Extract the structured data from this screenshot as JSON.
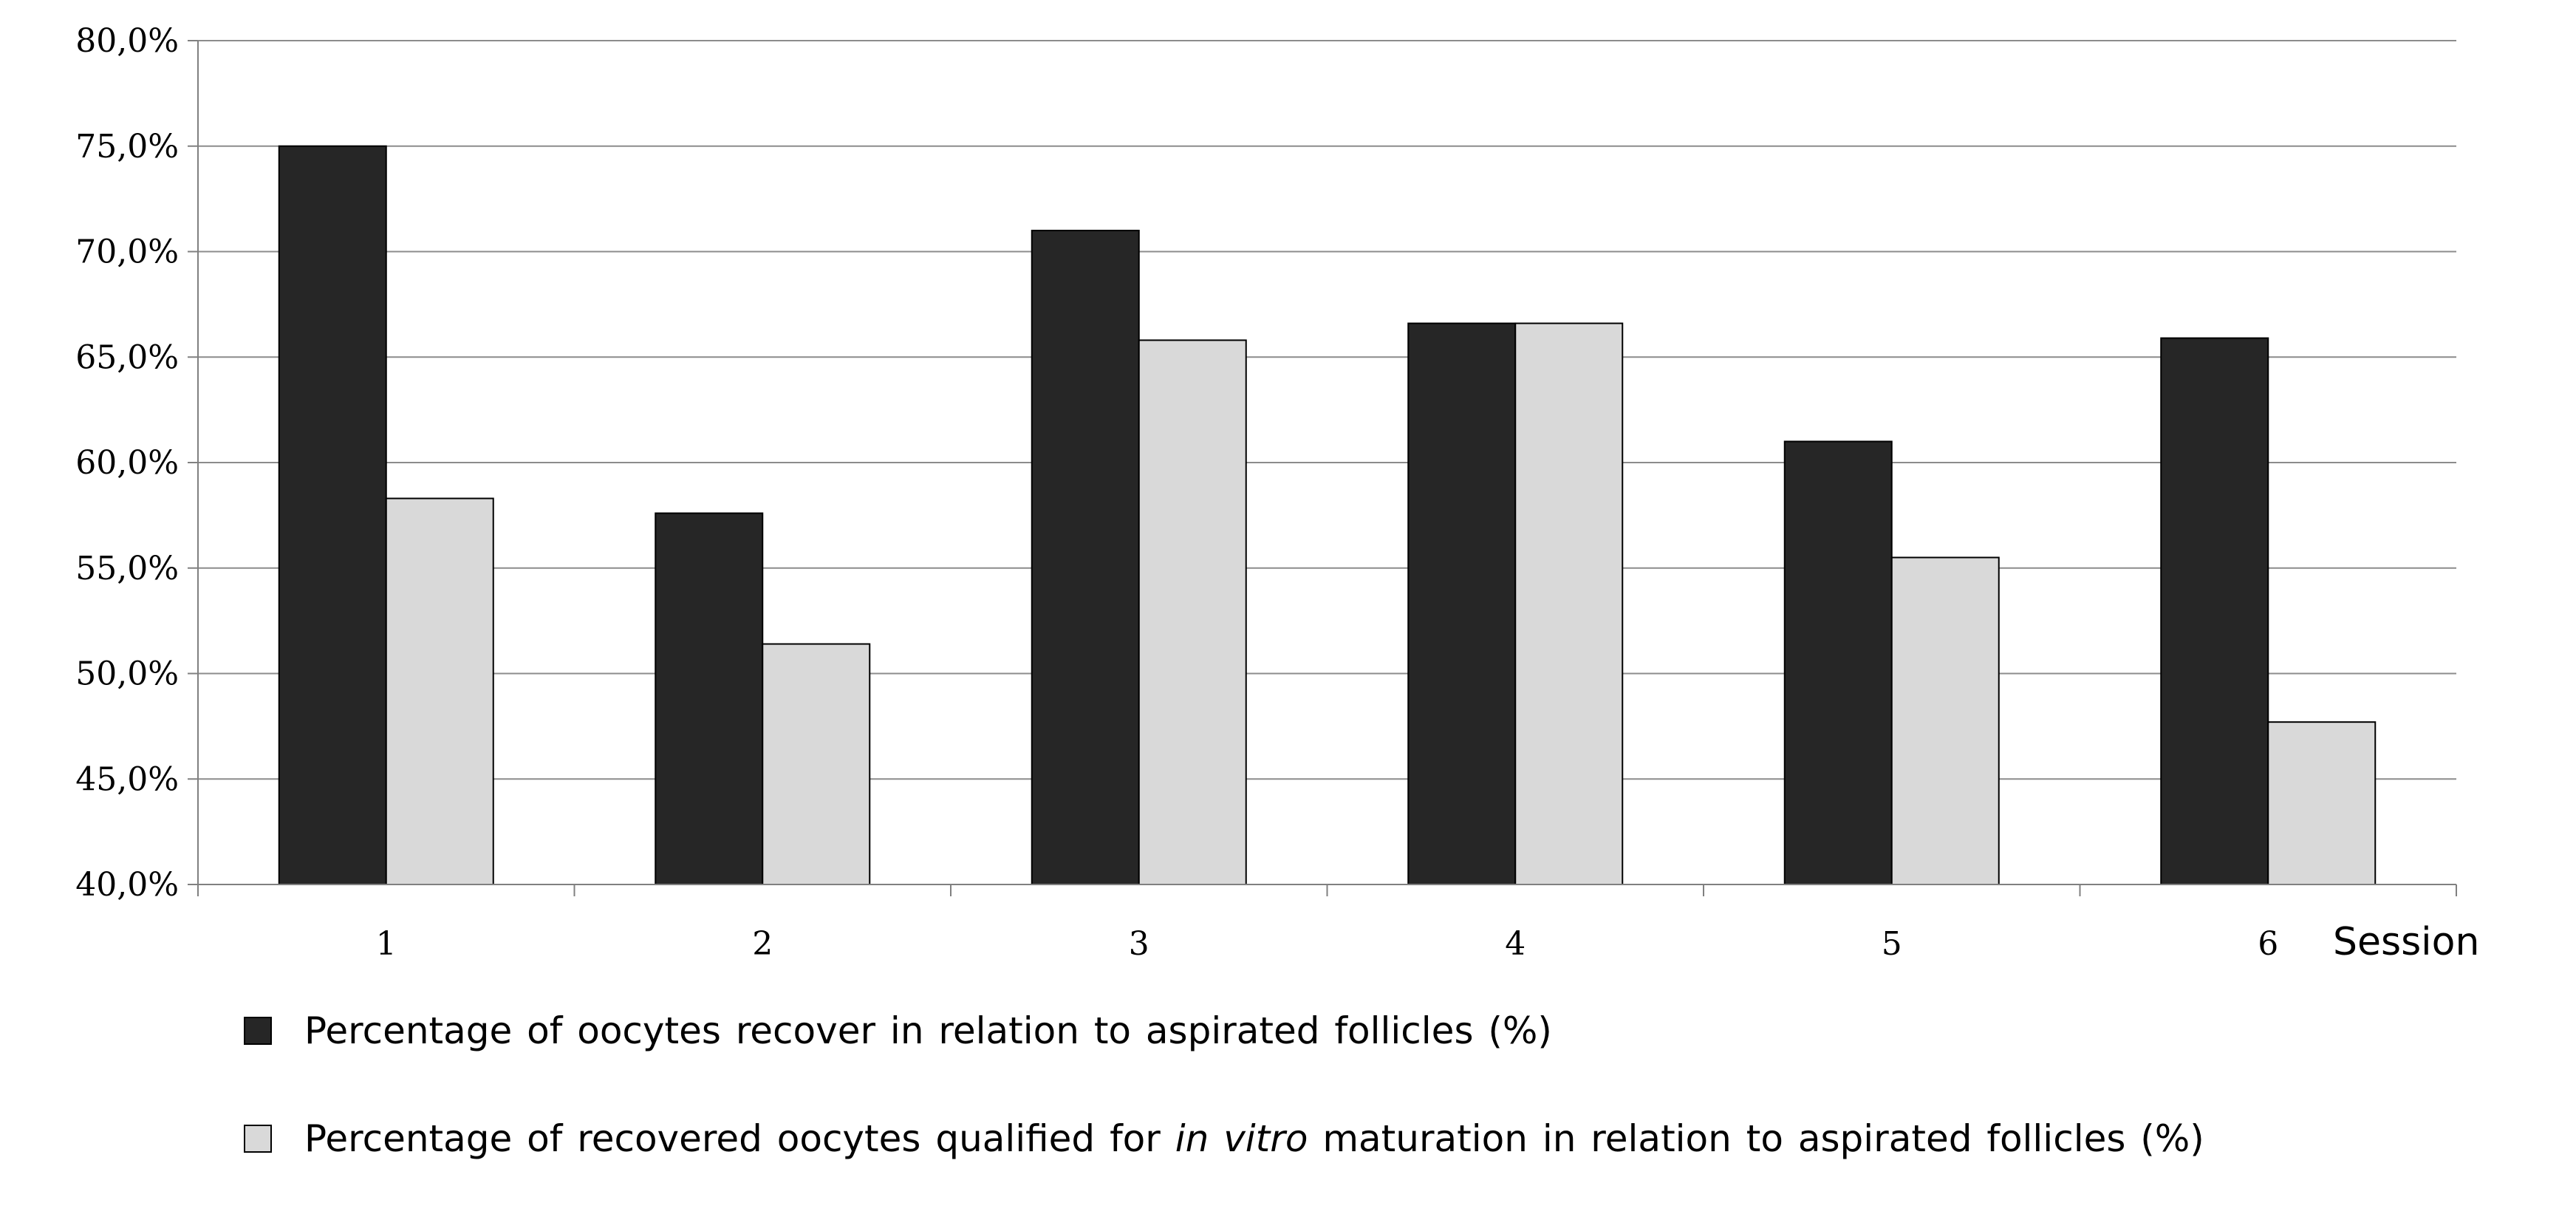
{
  "chart_data": {
    "type": "bar",
    "categories": [
      "1",
      "2",
      "3",
      "4",
      "5",
      "6"
    ],
    "xlabel": "Session",
    "ylim": [
      40,
      80
    ],
    "yticks": [
      40,
      45,
      50,
      55,
      60,
      65,
      70,
      75,
      80
    ],
    "ytick_labels": [
      "40,0%",
      "45,0%",
      "50,0%",
      "55,0%",
      "60,0%",
      "65,0%",
      "70,0%",
      "75,0%",
      "80,0%"
    ],
    "grid": true,
    "legend_position": "bottom",
    "series": [
      {
        "name": "Percentage of oocytes recover in relation to aspirated follicles (%)",
        "color": "#262626",
        "values": [
          75.0,
          57.6,
          71.0,
          66.6,
          61.0,
          65.9
        ]
      },
      {
        "name": "Percentage of recovered oocytes qualified for in vitro maturation in relation to aspirated follicles (%)",
        "color": "#d9d9d9",
        "values": [
          58.3,
          51.4,
          65.8,
          66.6,
          55.5,
          47.7
        ]
      }
    ]
  },
  "legend": {
    "item1": "Percentage of oocytes recover in relation to aspirated follicles (%)",
    "item2_before": "Percentage of recovered oocytes qualified for ",
    "item2_italic": "in vitro",
    "item2_after": " maturation in relation to aspirated follicles (%)"
  }
}
